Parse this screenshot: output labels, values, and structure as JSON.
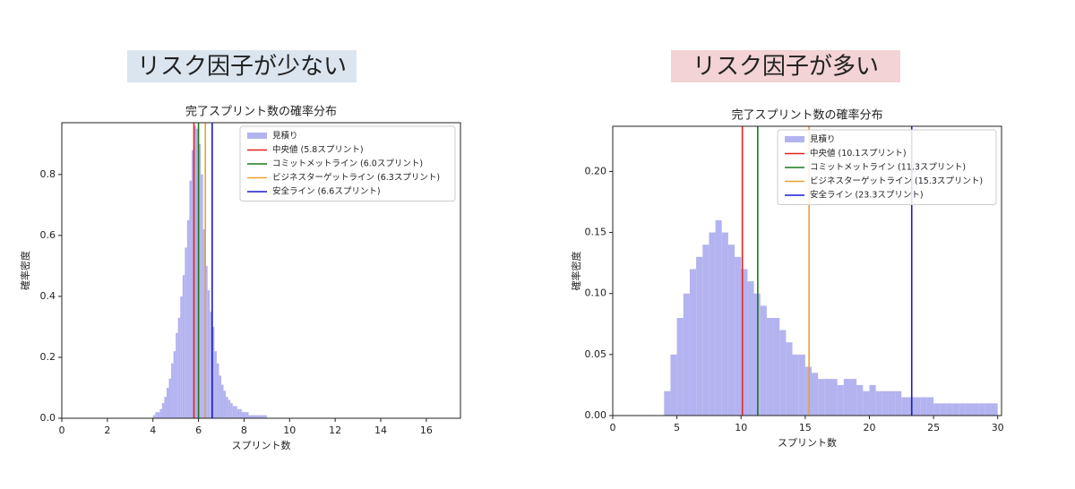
{
  "chart_data": [
    {
      "type": "histogram",
      "heading": "リスク因子が少ない",
      "title": "完了スプリント数の確率分布",
      "xlabel": "スプリント数",
      "ylabel": "確率密度",
      "name": "見積り",
      "color": "#b3b3f0",
      "bins": [
        4,
        4.1,
        4.2,
        4.3,
        4.4,
        4.5,
        4.6,
        4.7,
        4.8,
        4.9,
        5,
        5.1,
        5.2,
        5.3,
        5.4,
        5.5,
        5.6,
        5.7,
        5.8,
        5.9,
        6,
        6.1,
        6.2,
        6.3,
        6.4,
        6.5,
        6.6,
        6.7,
        6.8,
        6.9,
        7,
        7.1,
        7.2,
        7.3,
        7.4,
        7.5,
        7.6,
        7.7,
        7.8,
        7.9,
        8,
        8.1,
        8.2,
        8.3,
        8.4,
        8.5,
        8.6,
        8.7,
        8.8,
        8.9,
        9
      ],
      "values": [
        0.01,
        0.02,
        0.02,
        0.03,
        0.05,
        0.07,
        0.1,
        0.13,
        0.18,
        0.22,
        0.28,
        0.33,
        0.4,
        0.47,
        0.56,
        0.65,
        0.78,
        0.88,
        0.96,
        0.95,
        0.9,
        0.8,
        0.62,
        0.5,
        0.42,
        0.35,
        0.3,
        0.22,
        0.18,
        0.14,
        0.11,
        0.09,
        0.07,
        0.06,
        0.05,
        0.04,
        0.04,
        0.03,
        0.03,
        0.02,
        0.02,
        0.02,
        0.01,
        0.01,
        0.01,
        0.01,
        0.01,
        0.01,
        0.01,
        0.01
      ],
      "lines": [
        {
          "name": "中央値 (5.8スプリント)",
          "x": 5.8,
          "color": "#e8201c"
        },
        {
          "name": "コミットメットライン (6.0スプリント)",
          "x": 6.0,
          "color": "#1a7a1a"
        },
        {
          "name": "ビジネスターゲットライン (6.3スプリント)",
          "x": 6.3,
          "color": "#f0a030"
        },
        {
          "name": "安全ライン (6.6スプリント)",
          "x": 6.6,
          "color": "#1a1ad0"
        }
      ],
      "xlim": [
        0,
        17.5
      ],
      "xticks": [
        0,
        2,
        4,
        6,
        8,
        10,
        12,
        14,
        16
      ],
      "ylim": [
        0,
        0.97
      ],
      "yticks": [
        {
          "value": 0,
          "label": "0.0"
        },
        0.2,
        0.4,
        0.6,
        0.8
      ]
    },
    {
      "type": "histogram",
      "heading": "リスク因子が多い",
      "title": "完了スプリント数の確率分布",
      "xlabel": "スプリント数",
      "ylabel": "確率密度",
      "name": "見積り",
      "color": "#b3b3f0",
      "bins": [
        4,
        4.5,
        5,
        5.5,
        6,
        6.5,
        7,
        7.5,
        8,
        8.5,
        9,
        9.5,
        10,
        10.5,
        11,
        11.5,
        12,
        12.5,
        13,
        13.5,
        14,
        14.5,
        15,
        15.5,
        16,
        16.5,
        17,
        17.5,
        18,
        18.5,
        19,
        19.5,
        20,
        20.5,
        21,
        21.5,
        22,
        22.5,
        23,
        23.5,
        24,
        24.5,
        25,
        25.5,
        26,
        26.5,
        27,
        27.5,
        28,
        28.5,
        29,
        29.5,
        30
      ],
      "values": [
        0.02,
        0.05,
        0.08,
        0.1,
        0.12,
        0.13,
        0.14,
        0.15,
        0.16,
        0.15,
        0.14,
        0.13,
        0.12,
        0.11,
        0.1,
        0.09,
        0.08,
        0.08,
        0.07,
        0.06,
        0.05,
        0.05,
        0.04,
        0.035,
        0.03,
        0.03,
        0.03,
        0.025,
        0.03,
        0.03,
        0.025,
        0.02,
        0.025,
        0.02,
        0.02,
        0.02,
        0.02,
        0.015,
        0.015,
        0.015,
        0.015,
        0.015,
        0.01,
        0.01,
        0.01,
        0.01,
        0.01,
        0.01,
        0.01,
        0.01,
        0.01,
        0.01
      ],
      "lines": [
        {
          "name": "中央値 (10.1スプリント)",
          "x": 10.1,
          "color": "#e8201c"
        },
        {
          "name": "コミットメットライン (11.3スプリント)",
          "x": 11.3,
          "color": "#1a7a1a"
        },
        {
          "name": "ビジネスターゲットライン (15.3スプリント)",
          "x": 15.3,
          "color": "#f0a030"
        },
        {
          "name": "安全ライン (23.3スプリント)",
          "x": 23.3,
          "color": "#1a1ad0"
        }
      ],
      "xlim": [
        0,
        30.3
      ],
      "xticks": [
        0,
        5,
        10,
        15,
        20,
        25,
        30
      ],
      "ylim": [
        0,
        0.237
      ],
      "yticks": [
        {
          "value": 0,
          "label": "0.00"
        },
        0.05,
        {
          "value": 0.1,
          "label": "0.10"
        },
        0.15,
        {
          "value": 0.2,
          "label": "0.20"
        }
      ]
    }
  ]
}
